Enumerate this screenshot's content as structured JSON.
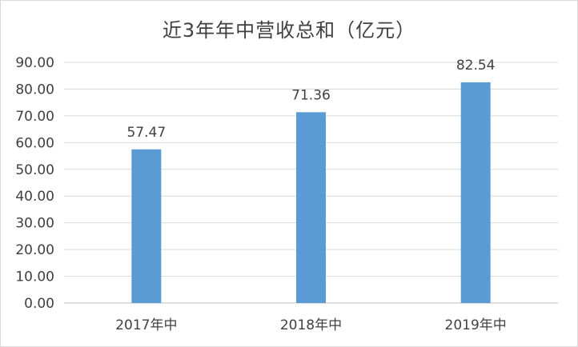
{
  "chart_data": {
    "type": "bar",
    "title": "近3年年中营收总和（亿元）",
    "categories": [
      "2017年中",
      "2018年中",
      "2019年中"
    ],
    "values": [
      57.47,
      71.36,
      82.54
    ],
    "data_labels": [
      "57.47",
      "71.36",
      "82.54"
    ],
    "y_ticks": [
      "0.00",
      "10.00",
      "20.00",
      "30.00",
      "40.00",
      "50.00",
      "60.00",
      "70.00",
      "80.00",
      "90.00"
    ],
    "ylim": [
      0,
      90
    ],
    "grid": true,
    "legend": "none",
    "bar_color": "#5b9bd5",
    "grid_color": "#d9d9d9"
  }
}
